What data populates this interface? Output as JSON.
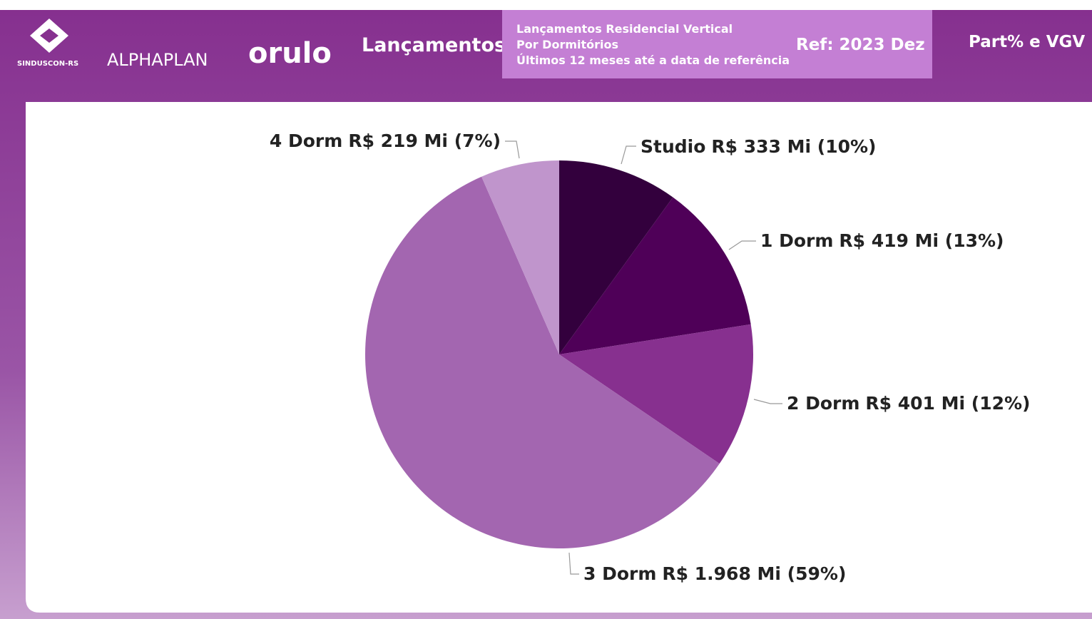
{
  "header": {
    "logos": [
      "SINDUSCON-RS",
      "ALPHAPLAN",
      "orulo"
    ],
    "section": "Lançamentos",
    "subtitle_lines": [
      "Lançamentos Residencial Vertical",
      "Por Dormitórios",
      "Últimos 12 meses até a data de referência"
    ],
    "reference": "Ref: 2023 Dez",
    "view": "Part% e VGV"
  },
  "chart_data": {
    "type": "pie",
    "categories": [
      "Studio",
      "1 Dorm",
      "2 Dorm",
      "3 Dorm",
      "4 Dorm"
    ],
    "values": [
      333,
      419,
      401,
      1968,
      219
    ],
    "value_labels": [
      "R$ 333 Mi (10%)",
      "R$ 419 Mi (13%)",
      "R$ 401 Mi (12%)",
      "R$ 1.968 Mi (59%)",
      "R$ 219 Mi (7%)"
    ],
    "colors": [
      "#33003d",
      "#4f0058",
      "#87308f",
      "#a366b0",
      "#c095cc"
    ]
  }
}
